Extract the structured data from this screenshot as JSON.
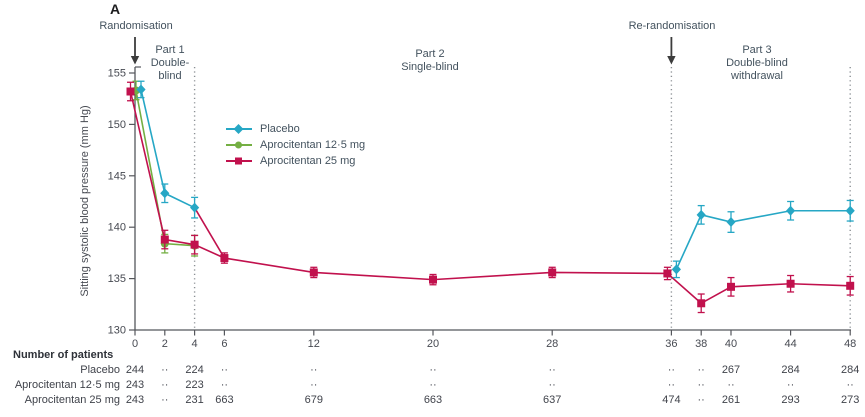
{
  "figure": {
    "panel_label": "A",
    "randomisation_label": "Randomisation",
    "rerandomisation_label": "Re-randomisation",
    "part1_label": "Part 1\nDouble-\nblind",
    "part2_label": "Part 2\nSingle-blind",
    "part3_label": "Part 3\nDouble-blind\nwithdrawal"
  },
  "chart_data": {
    "type": "line",
    "ylabel": "Sitting systolic blood pressure (mm Hg)",
    "ylim": [
      130,
      155
    ],
    "yticks": [
      130,
      135,
      140,
      145,
      150,
      155
    ],
    "xticks": [
      0,
      2,
      4,
      6,
      12,
      20,
      28,
      36,
      38,
      40,
      44,
      48
    ],
    "x_unit": "weeks",
    "grid": false,
    "legend_position": "inside-upper-left",
    "part_boundaries_weeks": [
      4,
      36,
      48
    ],
    "series": [
      {
        "name": "Placebo",
        "color": "#26a7c5",
        "marker": "diamond",
        "segments": [
          {
            "x": [
              0,
              2,
              4
            ],
            "y": [
              153.4,
              143.3,
              141.9
            ],
            "err": [
              0.8,
              0.9,
              1.0
            ]
          },
          {
            "x": [
              36,
              38,
              40,
              44,
              48
            ],
            "y": [
              135.9,
              141.2,
              140.5,
              141.6,
              141.6
            ],
            "err": [
              0.8,
              0.9,
              1.0,
              0.9,
              1.0
            ]
          }
        ]
      },
      {
        "name": "Aprocitentan 12·5 mg",
        "color": "#74af43",
        "marker": "circle",
        "segments": [
          {
            "x": [
              0,
              2,
              4
            ],
            "y": [
              153.3,
              138.4,
              138.2
            ],
            "err": [
              0.9,
              0.9,
              1.0
            ]
          }
        ]
      },
      {
        "name": "Aprocitentan 25 mg",
        "color": "#c1114d",
        "marker": "square",
        "segments": [
          {
            "x": [
              0,
              2,
              4,
              6,
              12,
              20,
              28,
              36,
              38,
              40,
              44,
              48
            ],
            "y": [
              153.2,
              138.8,
              138.3,
              137.0,
              135.6,
              134.9,
              135.6,
              135.5,
              132.6,
              134.2,
              134.5,
              134.3
            ],
            "err": [
              0.9,
              0.9,
              0.9,
              0.5,
              0.5,
              0.5,
              0.5,
              0.6,
              0.9,
              0.9,
              0.8,
              0.9
            ]
          }
        ]
      }
    ],
    "transition_segment": {
      "x": [
        4,
        6
      ],
      "y": [
        141.9,
        137.0
      ]
    }
  },
  "patients_table": {
    "title": "Number of patients",
    "weeks": [
      0,
      2,
      4,
      6,
      12,
      20,
      28,
      36,
      38,
      40,
      44,
      48
    ],
    "rows": [
      {
        "label": "Placebo",
        "values": [
          "244",
          "··",
          "224",
          "··",
          "··",
          "··",
          "··",
          "··",
          "··",
          "267",
          "284",
          "284"
        ]
      },
      {
        "label": "Aprocitentan 12·5 mg",
        "values": [
          "243",
          "··",
          "223",
          "··",
          "··",
          "··",
          "··",
          "··",
          "··",
          "··",
          "··",
          "··"
        ]
      },
      {
        "label": "Aprocitentan 25 mg",
        "values": [
          "243",
          "··",
          "231",
          "663",
          "679",
          "663",
          "637",
          "474",
          "··",
          "261",
          "293",
          "273"
        ]
      }
    ]
  }
}
